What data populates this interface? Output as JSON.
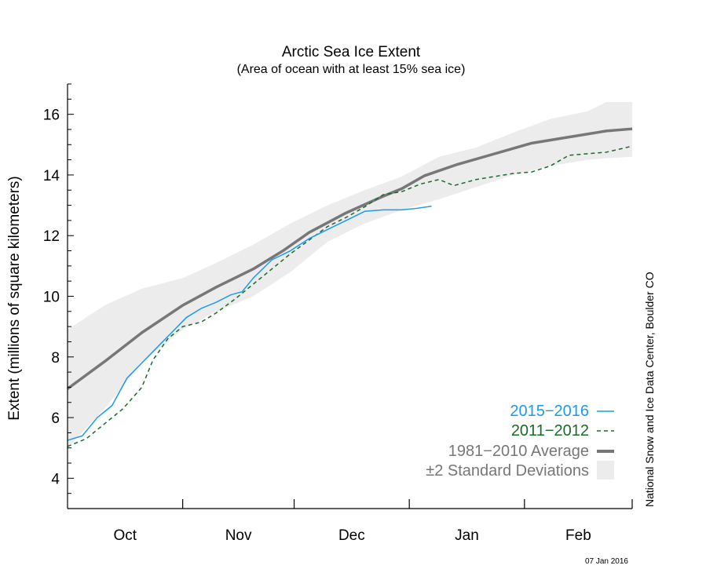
{
  "chart_data": {
    "type": "line",
    "title": "Arctic Sea Ice Extent",
    "subtitle": "(Area of ocean with at least 15% sea ice)",
    "ylabel": "Extent (millions of square kilometers)",
    "xlabel": "",
    "ylim": [
      3,
      17
    ],
    "yticks": [
      4,
      6,
      8,
      10,
      12,
      14,
      16
    ],
    "x_unit": "days since Oct 1",
    "xlim": [
      0,
      152
    ],
    "x_month_labels": [
      "Oct",
      "Nov",
      "Dec",
      "Jan",
      "Feb"
    ],
    "x_month_starts": [
      0,
      31,
      61,
      92,
      123,
      152
    ],
    "grid": false,
    "legend_position": "bottom-right",
    "series": [
      {
        "name": "2015−2016",
        "color": "#1a9bf0",
        "style": "solid",
        "x": [
          0,
          4,
          8,
          12,
          16,
          20,
          24,
          28,
          32,
          36,
          40,
          44,
          47,
          50,
          55,
          60,
          65,
          70,
          75,
          80,
          85,
          90,
          94,
          98
        ],
        "y": [
          5.25,
          5.4,
          6.0,
          6.4,
          7.3,
          7.8,
          8.3,
          8.8,
          9.3,
          9.6,
          9.8,
          10.05,
          10.15,
          10.6,
          11.2,
          11.5,
          11.9,
          12.2,
          12.5,
          12.8,
          12.85,
          12.85,
          12.9,
          12.97
        ]
      },
      {
        "name": "2011−2012",
        "color": "#1a6b2a",
        "style": "dashed",
        "x": [
          0,
          5,
          10,
          15,
          20,
          23,
          27,
          31,
          36,
          40,
          45,
          50,
          55,
          60,
          65,
          70,
          75,
          80,
          85,
          90,
          95,
          100,
          104,
          110,
          115,
          120,
          125,
          130,
          135,
          140,
          145,
          152
        ],
        "y": [
          5.05,
          5.3,
          5.8,
          6.3,
          7.0,
          7.9,
          8.6,
          9.0,
          9.15,
          9.45,
          9.9,
          10.4,
          10.9,
          11.4,
          11.85,
          12.3,
          12.6,
          12.95,
          13.35,
          13.45,
          13.7,
          13.85,
          13.65,
          13.85,
          13.95,
          14.05,
          14.1,
          14.3,
          14.65,
          14.7,
          14.75,
          14.95
        ]
      },
      {
        "name": "1981−2010 Average",
        "color": "#777777",
        "style": "thick",
        "x": [
          0,
          10,
          20,
          31,
          40,
          50,
          58,
          65,
          75,
          85,
          90,
          96,
          105,
          115,
          125,
          135,
          145,
          152
        ],
        "y": [
          6.95,
          7.85,
          8.8,
          9.7,
          10.3,
          10.9,
          11.5,
          12.1,
          12.75,
          13.3,
          13.55,
          13.97,
          14.35,
          14.7,
          15.05,
          15.25,
          15.45,
          15.52
        ]
      }
    ],
    "band": {
      "name": "±2 Standard Deviations",
      "color": "#ececec",
      "x": [
        0,
        10,
        20,
        31,
        40,
        50,
        60,
        70,
        80,
        90,
        100,
        110,
        120,
        130,
        140,
        145,
        152
      ],
      "upper": [
        8.9,
        9.7,
        10.25,
        10.6,
        11.1,
        11.7,
        12.4,
        13.0,
        13.5,
        13.95,
        14.6,
        14.9,
        15.4,
        15.85,
        16.1,
        16.4,
        16.4
      ],
      "lower": [
        5.0,
        6.3,
        7.8,
        8.9,
        9.5,
        10.0,
        10.8,
        11.8,
        12.4,
        12.85,
        13.2,
        13.6,
        14.0,
        14.3,
        14.5,
        14.55,
        14.6
      ]
    }
  },
  "credit": "National Snow and Ice Data Center, Boulder CO",
  "date_stamp": "07 Jan 2016"
}
